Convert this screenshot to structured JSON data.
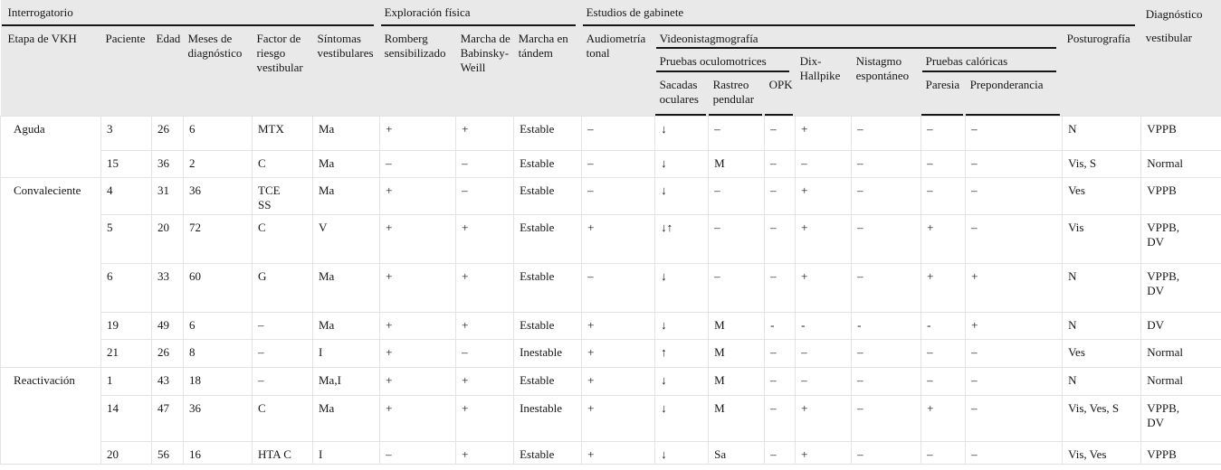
{
  "colors": {
    "header_bg": "#e9e9e9",
    "rule": "#161616",
    "grid": "#e3e3e3",
    "text": "#161616"
  },
  "header": {
    "groups": {
      "interrogatorio": "Interrogatorio",
      "exploracion_fisica": "Exploración física",
      "estudios_gabinete": "Estudios de gabinete",
      "diagnostico_vestibular": "Diagnóstico vestibular"
    },
    "cols": {
      "etapa": "Etapa de VKH",
      "paciente": "Paciente",
      "edad": "Edad",
      "meses": "Meses de diagnóstico",
      "factor": "Factor de riesgo vestibular",
      "sintomas": "Síntomas vestibulares",
      "romberg": "Romberg sensibilizado",
      "babinsky": "Marcha de Babinsky-Weill",
      "tandem": "Marcha en tándem",
      "audiometria": "Audiometría tonal",
      "videonistagmografia": "Videonistagmografía",
      "posturografia": "Posturografía"
    },
    "sub": {
      "oculomotrices": "Pruebas oculomotrices",
      "dix": "Dix-Hallpike",
      "nistagmo": "Nistagmo espontáneo",
      "caloricas": "Pruebas calóricas"
    },
    "leaf": {
      "sacadas": "Sacadas oculares",
      "rastreo": "Rastreo pendular",
      "opk": "OPK",
      "paresia": "Paresia",
      "preponderancia": "Preponderancia"
    }
  },
  "table": {
    "field_order": [
      "etapa",
      "paciente",
      "edad",
      "meses",
      "factor",
      "sintomas",
      "romberg",
      "babinsky",
      "tandem",
      "audiometria",
      "sacadas",
      "rastreo",
      "opk",
      "dix",
      "nistagmo",
      "paresia",
      "preponderancia",
      "posturografia",
      "diagnostico"
    ],
    "rows": [
      {
        "etapa": "Aguda",
        "paciente": "3",
        "edad": "26",
        "meses": "6",
        "factor": "MTX",
        "sintomas": "Ma",
        "romberg": "+",
        "babinsky": "+",
        "tandem": "Estable",
        "audiometria": "–",
        "sacadas": "↓",
        "rastreo": "–",
        "opk": "–",
        "dix": "+",
        "nistagmo": "–",
        "paresia": "–",
        "preponderancia": "–",
        "posturografia": "N",
        "diagnostico": "VPPB"
      },
      {
        "etapa": null,
        "paciente": "15",
        "edad": "36",
        "meses": "2",
        "factor": "C",
        "sintomas": "Ma",
        "romberg": "–",
        "babinsky": "–",
        "tandem": "Estable",
        "audiometria": "–",
        "sacadas": "↓",
        "rastreo": "M",
        "opk": "–",
        "dix": "–",
        "nistagmo": "–",
        "paresia": "–",
        "preponderancia": "–",
        "posturografia": "Vis, S",
        "diagnostico": "Normal"
      },
      {
        "etapa": "Convaleciente",
        "paciente": "4",
        "edad": "31",
        "meses": "36",
        "factor": "TCE\nSS",
        "sintomas": "Ma",
        "romberg": "+",
        "babinsky": "–",
        "tandem": "Estable",
        "audiometria": "–",
        "sacadas": "↓",
        "rastreo": "–",
        "opk": "–",
        "dix": "+",
        "nistagmo": "–",
        "paresia": "–",
        "preponderancia": "–",
        "posturografia": "Ves",
        "diagnostico": "VPPB"
      },
      {
        "etapa": null,
        "paciente": "5",
        "edad": "20",
        "meses": "72",
        "factor": "C",
        "sintomas": "V",
        "romberg": "+",
        "babinsky": "+",
        "tandem": "Estable",
        "audiometria": "+",
        "sacadas": "↓↑",
        "rastreo": "–",
        "opk": "–",
        "dix": "+",
        "nistagmo": "–",
        "paresia": "+",
        "preponderancia": "–",
        "posturografia": "Vis",
        "diagnostico": "VPPB,\nDV"
      },
      {
        "etapa": null,
        "paciente": "6",
        "edad": "33",
        "meses": "60",
        "factor": "G",
        "sintomas": "Ma",
        "romberg": "+",
        "babinsky": "+",
        "tandem": "Estable",
        "audiometria": "–",
        "sacadas": "↓",
        "rastreo": "–",
        "opk": "–",
        "dix": "+",
        "nistagmo": "–",
        "paresia": "+",
        "preponderancia": "+",
        "posturografia": "N",
        "diagnostico": "VPPB,\nDV"
      },
      {
        "etapa": null,
        "paciente": "19",
        "edad": "49",
        "meses": "6",
        "factor": "–",
        "sintomas": "Ma",
        "romberg": "+",
        "babinsky": "+",
        "tandem": "Estable",
        "audiometria": "+",
        "sacadas": "↓",
        "rastreo": "M",
        "opk": "-",
        "dix": "-",
        "nistagmo": "-",
        "paresia": "-",
        "preponderancia": "+",
        "posturografia": "N",
        "diagnostico": "DV"
      },
      {
        "etapa": null,
        "paciente": "21",
        "edad": "26",
        "meses": "8",
        "factor": "–",
        "sintomas": "I",
        "romberg": "+",
        "babinsky": "–",
        "tandem": "Inestable",
        "audiometria": "+",
        "sacadas": "↑",
        "rastreo": "M",
        "opk": "–",
        "dix": "–",
        "nistagmo": "–",
        "paresia": "–",
        "preponderancia": "–",
        "posturografia": "Ves",
        "diagnostico": "Normal"
      },
      {
        "etapa": "Reactivación",
        "paciente": "1",
        "edad": "43",
        "meses": "18",
        "factor": "–",
        "sintomas": "Ma,I",
        "romberg": "+",
        "babinsky": "+",
        "tandem": "Estable",
        "audiometria": "+",
        "sacadas": "↓",
        "rastreo": "M",
        "opk": "–",
        "dix": "–",
        "nistagmo": "–",
        "paresia": "–",
        "preponderancia": "–",
        "posturografia": "N",
        "diagnostico": "Normal"
      },
      {
        "etapa": null,
        "paciente": "14",
        "edad": "47",
        "meses": "36",
        "factor": "C",
        "sintomas": "Ma",
        "romberg": "+",
        "babinsky": "+",
        "tandem": "Inestable",
        "audiometria": "+",
        "sacadas": "↓",
        "rastreo": "M",
        "opk": "–",
        "dix": "+",
        "nistagmo": "–",
        "paresia": "+",
        "preponderancia": "–",
        "posturografia": "Vis, Ves, S",
        "diagnostico": "VPPB,\nDV"
      },
      {
        "etapa": null,
        "paciente": "20",
        "edad": "56",
        "meses": "16",
        "factor": "HTA C",
        "sintomas": "I",
        "romberg": "–",
        "babinsky": "+",
        "tandem": "Estable",
        "audiometria": "+",
        "sacadas": "↓",
        "rastreo": "Sa",
        "opk": "–",
        "dix": "+",
        "nistagmo": "–",
        "paresia": "–",
        "preponderancia": "–",
        "posturografia": "Vis, Ves",
        "diagnostico": "VPPB"
      }
    ]
  }
}
